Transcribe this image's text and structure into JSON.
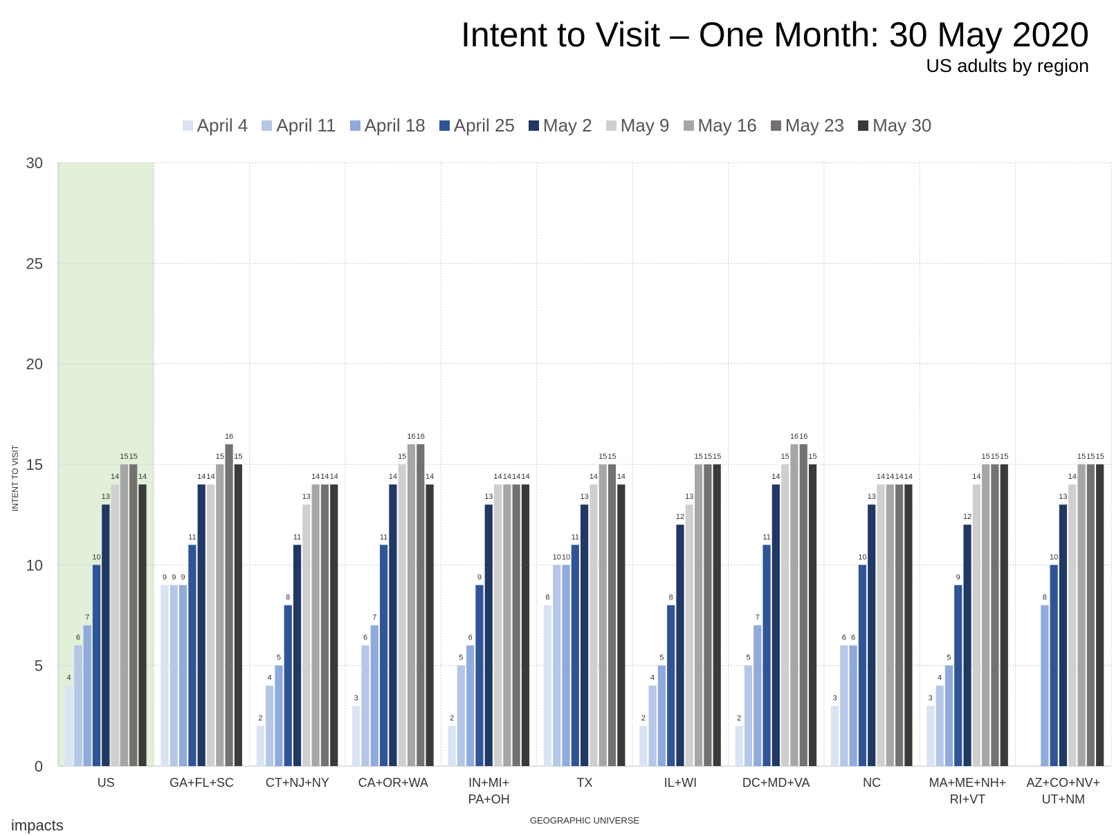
{
  "header": {
    "title": "Intent to Visit – One Month: 30 May 2020",
    "subtitle": "US adults by region"
  },
  "footer": {
    "logo": "impacts"
  },
  "colors": {
    "highlight_band": "#e2efd9",
    "grid": "#cccccc"
  },
  "chart_data": {
    "type": "bar",
    "title": "Intent to Visit – One Month: 30 May 2020",
    "subtitle": "US adults by region",
    "xlabel": "GEOGRAPHIC UNIVERSE",
    "ylabel": "INTENT TO VISIT",
    "ylim": [
      0,
      30
    ],
    "yticks": [
      "0",
      "5",
      "10",
      "15",
      "20",
      "25",
      "30"
    ],
    "grid": true,
    "legend_position": "top",
    "highlighted_category": "US",
    "categories": [
      [
        "US"
      ],
      [
        "GA+FL+SC"
      ],
      [
        "CT+NJ+NY"
      ],
      [
        "CA+OR+WA"
      ],
      [
        "IN+MI+",
        "PA+OH"
      ],
      [
        "TX"
      ],
      [
        "IL+WI"
      ],
      [
        "DC+MD+VA"
      ],
      [
        "NC"
      ],
      [
        "MA+ME+NH+",
        "RI+VT"
      ],
      [
        "AZ+CO+NV+",
        "UT+NM"
      ]
    ],
    "series": [
      {
        "name": "April 4",
        "color": "#dae3f3",
        "values": [
          4,
          9,
          2,
          3,
          2,
          8,
          2,
          2,
          3,
          3,
          null
        ]
      },
      {
        "name": "April 11",
        "color": "#b4c7e7",
        "values": [
          6,
          9,
          4,
          6,
          5,
          10,
          4,
          5,
          6,
          4,
          null
        ]
      },
      {
        "name": "April 18",
        "color": "#8faadc",
        "values": [
          7,
          9,
          5,
          7,
          6,
          10,
          5,
          7,
          6,
          5,
          8
        ]
      },
      {
        "name": "April 25",
        "color": "#2f5597",
        "values": [
          10,
          11,
          8,
          11,
          9,
          11,
          8,
          11,
          10,
          9,
          10
        ]
      },
      {
        "name": "May 2",
        "color": "#1f3864",
        "values": [
          13,
          14,
          11,
          14,
          13,
          13,
          12,
          14,
          13,
          12,
          13
        ]
      },
      {
        "name": "May 9",
        "color": "#d0cece",
        "values": [
          14,
          14,
          13,
          15,
          14,
          14,
          13,
          15,
          14,
          14,
          14
        ]
      },
      {
        "name": "May 16",
        "color": "#a6a6a6",
        "values": [
          15,
          15,
          14,
          16,
          14,
          15,
          15,
          16,
          14,
          15,
          15
        ]
      },
      {
        "name": "May 23",
        "color": "#767171",
        "values": [
          15,
          16,
          14,
          16,
          14,
          15,
          15,
          16,
          14,
          15,
          15
        ]
      },
      {
        "name": "May 30",
        "color": "#3a3a3a",
        "values": [
          14,
          15,
          14,
          14,
          14,
          14,
          15,
          15,
          14,
          15,
          15
        ]
      }
    ]
  }
}
